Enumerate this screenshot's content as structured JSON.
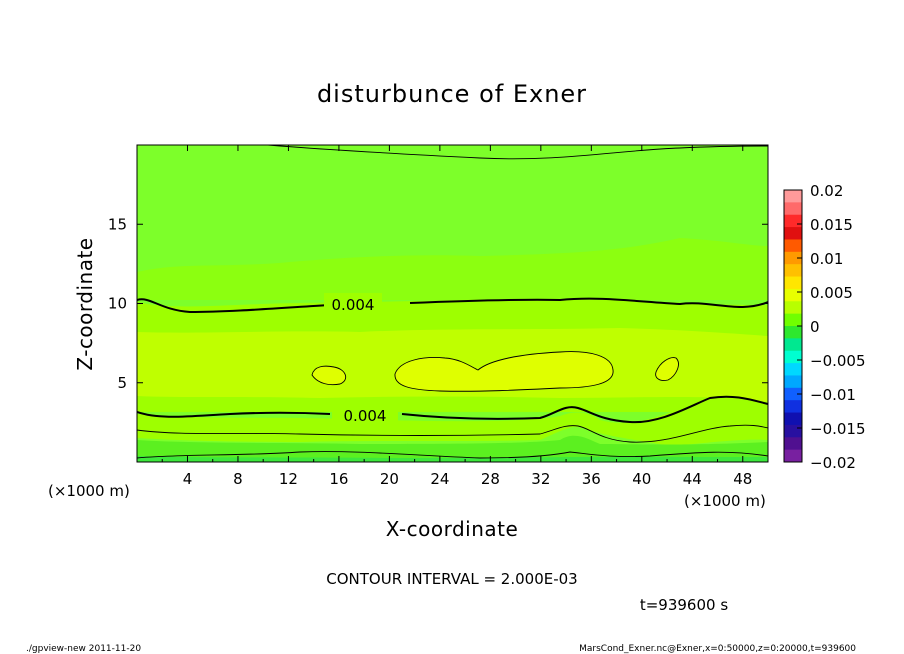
{
  "chart_data": {
    "type": "contour",
    "title": "disturbunce of Exner",
    "xlabel": "X-coordinate",
    "ylabel": "Z-coordinate",
    "x_unit_left": "(×1000 m)",
    "x_unit_right": "(×1000 m)",
    "xlim": [
      0,
      50
    ],
    "ylim": [
      0,
      20
    ],
    "x_ticks": [
      4,
      8,
      12,
      16,
      20,
      24,
      28,
      32,
      36,
      40,
      44,
      48
    ],
    "y_ticks": [
      5,
      10,
      15
    ],
    "contour_interval_text": "CONTOUR INTERVAL = 2.000E-03",
    "contour_labels": [
      {
        "text": "0.004",
        "x": 17.5,
        "z": 9.85
      },
      {
        "text": "0.004",
        "x": 17.7,
        "z": 2.9
      }
    ],
    "colorbar": {
      "min": -0.02,
      "max": 0.02,
      "tick_values": [
        0.02,
        0.015,
        0.01,
        0.005,
        0,
        -0.005,
        -0.01,
        -0.015,
        -0.02
      ],
      "tick_labels": [
        "0.02",
        "0.015",
        "0.01",
        "0.005",
        "0",
        "−0.005",
        "−0.01",
        "−0.015",
        "−0.02"
      ],
      "colors_top_to_bottom": [
        "#ff9a9a",
        "#ff6a6a",
        "#ff2a2a",
        "#e01010",
        "#ff5a00",
        "#ff9a00",
        "#ffc000",
        "#ffe600",
        "#e8ff00",
        "#b8ff00",
        "#70ff00",
        "#2ee82e",
        "#00e890",
        "#00ffd0",
        "#00d8ff",
        "#00a8ff",
        "#1060ff",
        "#1030e0",
        "#1010b0",
        "#2810a0",
        "#501090",
        "#7820a0"
      ]
    },
    "field_bands": [
      {
        "name": "near-zero background",
        "color": "#7dff2a"
      },
      {
        "name": "0.002-0.004",
        "color": "#9eff00"
      },
      {
        "name": "0.004-0.006",
        "color": "#bfff00"
      },
      {
        "name": "0.006-0.008",
        "color": "#dfff00"
      },
      {
        "name": "negative near ground",
        "color": "#3de83d"
      }
    ]
  },
  "time_label": "t=939600 s",
  "footer_left": "./gpview-new   2011-11-20",
  "footer_right": "MarsCond_Exner.nc@Exner,x=0:50000,z=0:20000,t=939600"
}
